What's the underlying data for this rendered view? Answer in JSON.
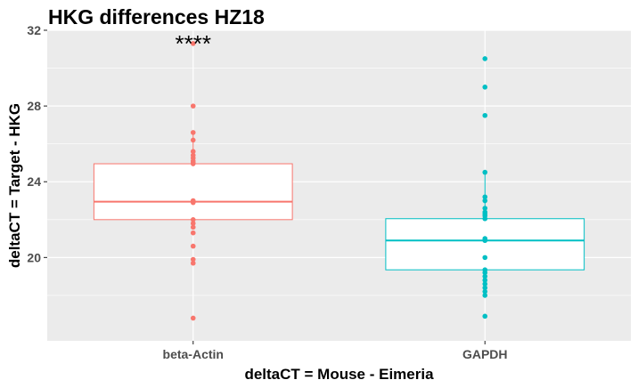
{
  "chart_data": {
    "type": "box",
    "title": "HKG differences HZ18",
    "xlabel": "deltaCT = Mouse - Eimeria",
    "ylabel": "deltaCT = Target - HKG",
    "ylim": [
      15.6,
      32.0
    ],
    "y_ticks": [
      20,
      24,
      28,
      32
    ],
    "grid": true,
    "legend": "none",
    "categories": [
      "beta-Actin",
      "GAPDH"
    ],
    "series": [
      {
        "category": "beta-Actin",
        "color": "#F8766D",
        "box": {
          "q1": 22.0,
          "median": 22.95,
          "q3": 24.95,
          "whisker_low": 21.6,
          "whisker_high": 26.6
        },
        "points": [
          31.3,
          28.0,
          26.6,
          26.2,
          25.6,
          25.4,
          25.25,
          25.1,
          25.0,
          24.95,
          23.0,
          22.9,
          22.0,
          21.8,
          21.6,
          21.3,
          20.6,
          19.9,
          19.7,
          16.8
        ]
      },
      {
        "category": "GAPDH",
        "color": "#00BFC4",
        "box": {
          "q1": 19.35,
          "median": 20.9,
          "q3": 22.05,
          "whisker_low": 17.95,
          "whisker_high": 24.5
        },
        "points": [
          30.5,
          29.0,
          27.5,
          24.5,
          23.2,
          23.0,
          22.6,
          22.4,
          22.3,
          22.2,
          22.05,
          21.0,
          20.9,
          20.0,
          19.35,
          19.2,
          19.0,
          18.8,
          18.6,
          18.4,
          18.2,
          18.0,
          16.9
        ]
      }
    ],
    "annotations": [
      {
        "text": "****",
        "category": "beta-Actin",
        "y": 31.3
      }
    ]
  }
}
